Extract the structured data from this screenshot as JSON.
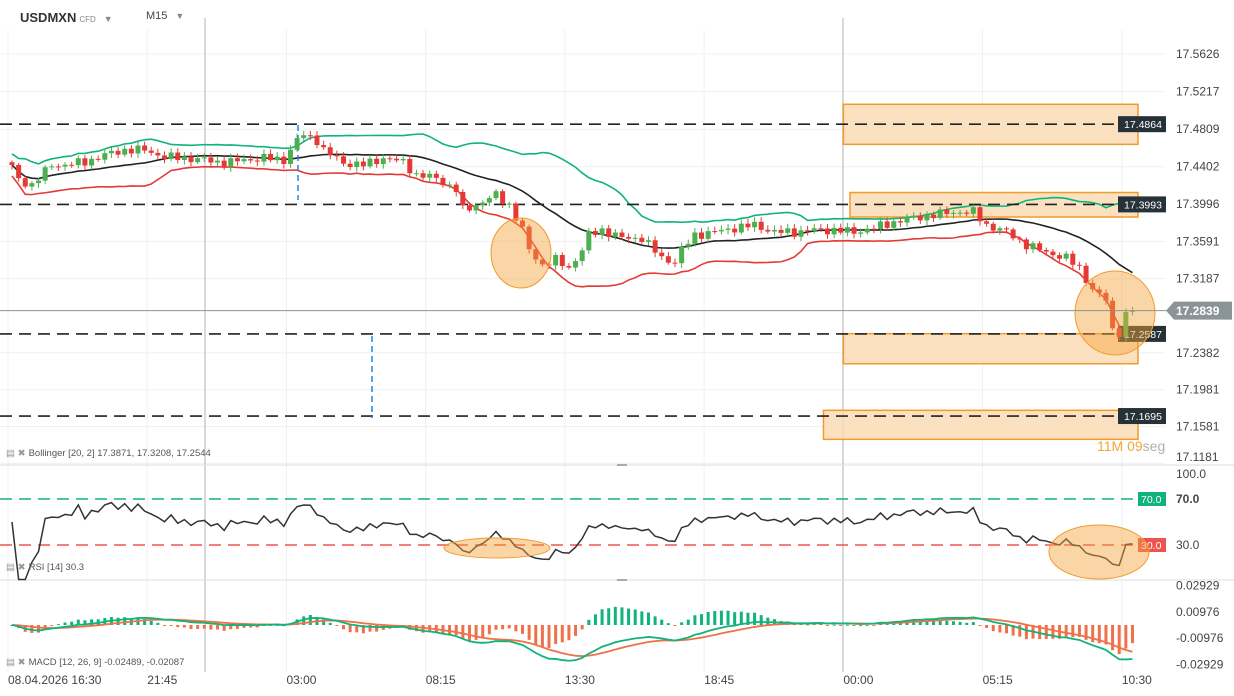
{
  "header": {
    "symbol": "USDMXN",
    "instrument_type": "CFD",
    "timeframe": "M15"
  },
  "indicators": {
    "bollinger": "Bollinger [20, 2] 17.3871, 17.3208, 17.2544",
    "rsi": "RSI [14] 30.3",
    "macd": "MACD [12, 26, 9] -0.02489, -0.02087"
  },
  "timer": {
    "minutes": "11M",
    "seconds": "09",
    "seconds_unit": "seg"
  },
  "colors": {
    "up": "#4caf50",
    "down": "#e53935",
    "bb_upper": "#10b37a",
    "bb_mid": "#222222",
    "bb_lower": "#e53935",
    "zone": "#fbd9b0",
    "zone_border": "#f39a2c",
    "rsi_line": "#333333",
    "rsi_70": "#10b37a",
    "rsi_30": "#ef5350",
    "macd": "#10b37a",
    "signal": "#f0704a",
    "current": "#8a9499"
  },
  "chart_data": {
    "type": "candlestick",
    "timeframe": "M15",
    "x_tick_labels": [
      "08.04.2026 16:30",
      "21:45",
      "03:00",
      "08:15",
      "13:30",
      "18:45",
      "00:00",
      "05:15",
      "10:30"
    ],
    "y_tick_labels": [
      "17.5626",
      "17.5217",
      "17.4809",
      "17.4402",
      "17.3996",
      "17.3591",
      "17.3187",
      "17.2382",
      "17.1981",
      "17.1581",
      "17.1181"
    ],
    "ylim": [
      17.1181,
      17.5626
    ],
    "current_price": "17.2839",
    "close_path": [
      [
        "2026-04-08 16:30",
        17.4421
      ],
      [
        "2026-04-08 16:45",
        17.4258
      ],
      [
        "2026-04-08 17:15",
        17.4204
      ],
      [
        "2026-04-08 18:00",
        17.4421
      ],
      [
        "2026-04-08 18:30",
        17.4421
      ],
      [
        "2026-04-08 19:15",
        17.4453
      ],
      [
        "2026-04-08 20:00",
        17.4529
      ],
      [
        "2026-04-08 20:45",
        17.4584
      ],
      [
        "2026-04-08 21:30",
        17.4584
      ],
      [
        "2026-04-08 22:15",
        17.4508
      ],
      [
        "2026-04-08 23:00",
        17.4497
      ],
      [
        "2026-04-08 23:45",
        17.4475
      ],
      [
        "2026-04-09 00:30",
        17.4443
      ],
      [
        "2026-04-09 01:15",
        17.4475
      ],
      [
        "2026-04-09 02:00",
        17.4497
      ],
      [
        "2026-04-09 02:45",
        17.4475
      ],
      [
        "2026-04-09 03:15",
        17.4692
      ],
      [
        "2026-04-09 03:30",
        17.4747
      ],
      [
        "2026-04-09 04:00",
        17.4692
      ],
      [
        "2026-04-09 04:15",
        17.4584
      ],
      [
        "2026-04-09 05:00",
        17.4443
      ],
      [
        "2026-04-09 05:45",
        17.4421
      ],
      [
        "2026-04-09 06:30",
        17.4497
      ],
      [
        "2026-04-09 07:15",
        17.4453
      ],
      [
        "2026-04-09 07:45",
        17.4312
      ],
      [
        "2026-04-09 08:30",
        17.428
      ],
      [
        "2026-04-09 09:15",
        17.4149
      ],
      [
        "2026-04-09 09:30",
        17.3932
      ],
      [
        "2026-04-09 10:00",
        17.3986
      ],
      [
        "2026-04-09 10:45",
        17.4095
      ],
      [
        "2026-04-09 11:15",
        17.3986
      ],
      [
        "2026-04-09 11:45",
        17.3715
      ],
      [
        "2026-04-09 12:00",
        17.3498
      ],
      [
        "2026-04-09 12:30",
        17.3335
      ],
      [
        "2026-04-09 13:00",
        17.3389
      ],
      [
        "2026-04-09 13:30",
        17.3302
      ],
      [
        "2026-04-09 14:00",
        17.3498
      ],
      [
        "2026-04-09 14:15",
        17.3661
      ],
      [
        "2026-04-09 14:45",
        17.3715
      ],
      [
        "2026-04-09 15:30",
        17.3628
      ],
      [
        "2026-04-09 16:15",
        17.3628
      ],
      [
        "2026-04-09 17:00",
        17.3411
      ],
      [
        "2026-04-09 17:30",
        17.3368
      ],
      [
        "2026-04-09 17:45",
        17.3498
      ],
      [
        "2026-04-09 18:15",
        17.3661
      ],
      [
        "2026-04-09 19:00",
        17.3693
      ],
      [
        "2026-04-09 19:45",
        17.3737
      ],
      [
        "2026-04-09 20:30",
        17.3769
      ],
      [
        "2026-04-09 21:15",
        17.3693
      ],
      [
        "2026-04-09 22:00",
        17.3693
      ],
      [
        "2026-04-09 22:45",
        17.3715
      ],
      [
        "2026-04-09 23:30",
        17.3715
      ],
      [
        "2026-04-10 00:15",
        17.3693
      ],
      [
        "2026-04-10 01:00",
        17.3737
      ],
      [
        "2026-04-10 01:45",
        17.3802
      ],
      [
        "2026-04-10 02:30",
        17.3845
      ],
      [
        "2026-04-10 03:15",
        17.3878
      ],
      [
        "2026-04-10 04:00",
        17.391
      ],
      [
        "2026-04-10 04:45",
        17.391
      ],
      [
        "2026-04-10 05:15",
        17.3769
      ],
      [
        "2026-04-10 06:00",
        17.3693
      ],
      [
        "2026-04-10 06:45",
        17.3552
      ],
      [
        "2026-04-10 07:30",
        17.3476
      ],
      [
        "2026-04-10 08:15",
        17.3411
      ],
      [
        "2026-04-10 08:45",
        17.3302
      ],
      [
        "2026-04-10 09:15",
        17.3064
      ],
      [
        "2026-04-10 09:45",
        17.2955
      ],
      [
        "2026-04-10 10:00",
        17.2629
      ],
      [
        "2026-04-10 10:15",
        17.2607
      ],
      [
        "2026-04-10 10:30",
        17.2792
      ],
      [
        "2026-04-10 10:45",
        17.2839
      ]
    ],
    "levels": [
      {
        "label": "17.4864",
        "value": 17.4864
      },
      {
        "label": "17.3993",
        "value": 17.3993
      },
      {
        "label": "17.2587",
        "value": 17.2587
      },
      {
        "label": "17.1695",
        "value": 17.1695
      }
    ],
    "zones": [
      {
        "from": 17.4645,
        "to": 17.508,
        "start": "2026-04-10 00:00"
      },
      {
        "from": 17.3856,
        "to": 17.4122,
        "start": "2026-04-10 00:15"
      },
      {
        "from": 17.2263,
        "to": 17.2589,
        "start": "2026-04-10 00:00"
      },
      {
        "from": 17.1442,
        "to": 17.1757,
        "start": "2026-04-09 23:15"
      }
    ],
    "rsi": {
      "levels": [
        70,
        30
      ],
      "tick_labels": [
        "100.0",
        "70.0",
        "30.0"
      ],
      "upper_tag": "70.0",
      "lower_tag": "30.0",
      "ylim": [
        0,
        100
      ]
    },
    "macd": {
      "tick_labels": [
        "0.02929",
        "0.00976",
        "-0.00976",
        "-0.02929"
      ],
      "ylim": [
        -0.0358,
        0.0327
      ]
    }
  }
}
